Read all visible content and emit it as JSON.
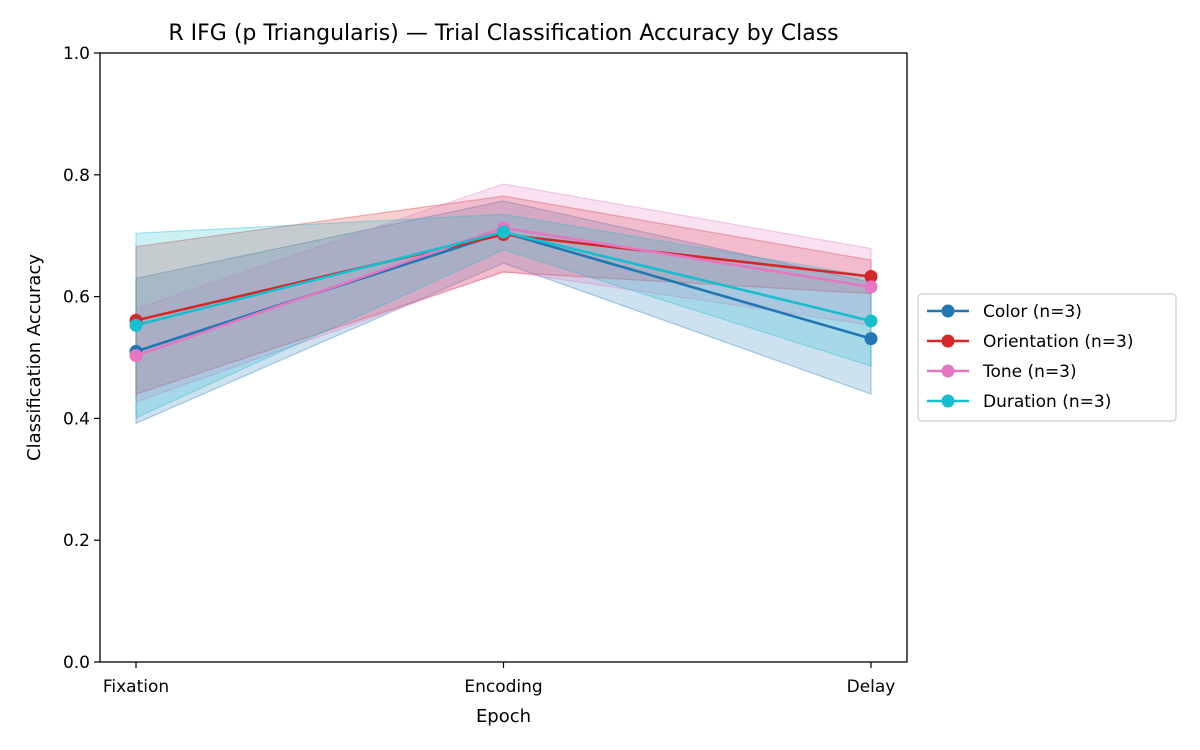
{
  "chart_data": {
    "type": "line",
    "title": "R IFG (p Triangularis) — Trial Classification Accuracy by Class",
    "xlabel": "Epoch",
    "ylabel": "Classification Accuracy",
    "categories": [
      "Fixation",
      "Encoding",
      "Delay"
    ],
    "ylim": [
      0,
      1
    ],
    "yticks": [
      "0.0",
      "0.2",
      "0.4",
      "0.6",
      "0.8",
      "1.0"
    ],
    "grid": false,
    "legend_position": "right-outside",
    "series": [
      {
        "name": "Color (n=3)",
        "color": "#1f77b4",
        "values": [
          0.51,
          0.705,
          0.531
        ],
        "lower": [
          0.392,
          0.655,
          0.44
        ],
        "upper": [
          0.63,
          0.757,
          0.623
        ]
      },
      {
        "name": "Orientation (n=3)",
        "color": "#d62728",
        "values": [
          0.561,
          0.702,
          0.633
        ],
        "lower": [
          0.44,
          0.64,
          0.605
        ],
        "upper": [
          0.682,
          0.765,
          0.66
        ]
      },
      {
        "name": "Tone (n=3)",
        "color": "#e377c2",
        "values": [
          0.503,
          0.713,
          0.616
        ],
        "lower": [
          0.427,
          0.642,
          0.553
        ],
        "upper": [
          0.58,
          0.785,
          0.679
        ]
      },
      {
        "name": "Duration (n=3)",
        "color": "#17becf",
        "values": [
          0.553,
          0.706,
          0.56
        ],
        "lower": [
          0.401,
          0.677,
          0.486
        ],
        "upper": [
          0.704,
          0.735,
          0.633
        ]
      }
    ]
  }
}
